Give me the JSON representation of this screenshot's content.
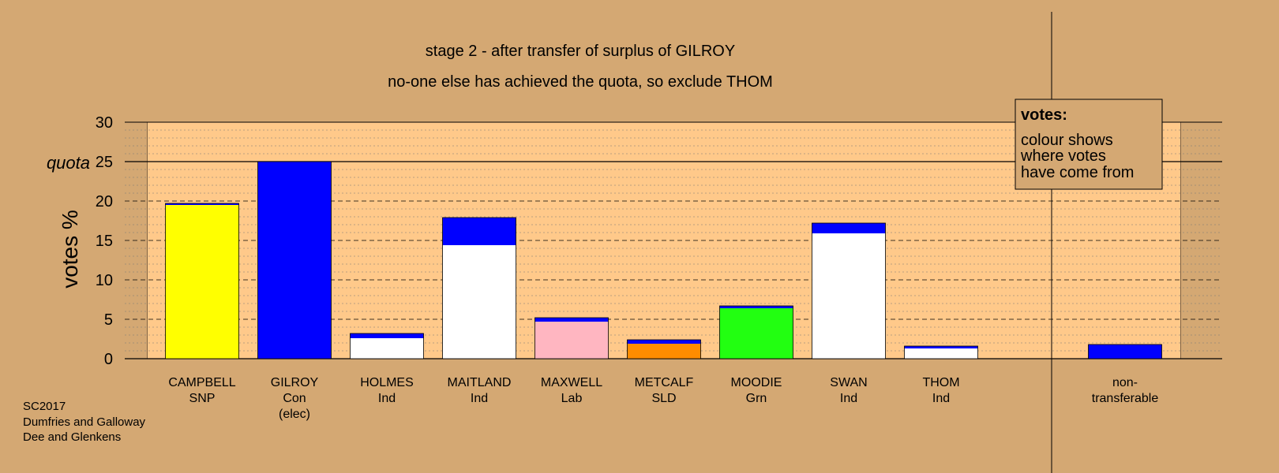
{
  "chart_data": {
    "type": "bar",
    "stacked": true,
    "title": "stage 2 - after transfer of surplus of GILROY",
    "subtitle": "no-one else has achieved the quota, so exclude THOM",
    "ylabel": "votes %",
    "xlabel": "",
    "ylim": [
      0,
      30
    ],
    "yticks": [
      "0",
      "5",
      "10",
      "15",
      "20",
      "25",
      "30"
    ],
    "quota": 25,
    "quota_label": "quota",
    "grid": true,
    "categories": [
      [
        "CAMPBELL",
        "SNP"
      ],
      [
        "GILROY",
        "Con",
        "(elec)"
      ],
      [
        "HOLMES",
        "Ind"
      ],
      [
        "MAITLAND",
        "Ind"
      ],
      [
        "MAXWELL",
        "Lab"
      ],
      [
        "METCALF",
        "SLD"
      ],
      [
        "MOODIE",
        "Grn"
      ],
      [
        "SWAN",
        "Ind"
      ],
      [
        "THOM",
        "Ind"
      ],
      [
        "non-",
        "transferable"
      ]
    ],
    "bars": [
      {
        "segments": [
          {
            "value": 19.5,
            "color": "#ffff00"
          },
          {
            "value": 0.2,
            "color": "#0000ff"
          }
        ]
      },
      {
        "segments": [
          {
            "value": 25.0,
            "color": "#0000ff"
          }
        ]
      },
      {
        "segments": [
          {
            "value": 2.6,
            "color": "#ffffff"
          },
          {
            "value": 0.6,
            "color": "#0000ff"
          }
        ]
      },
      {
        "segments": [
          {
            "value": 14.4,
            "color": "#ffffff"
          },
          {
            "value": 3.5,
            "color": "#0000ff"
          }
        ]
      },
      {
        "segments": [
          {
            "value": 4.7,
            "color": "#ffb6c1"
          },
          {
            "value": 0.5,
            "color": "#0000ff"
          }
        ]
      },
      {
        "segments": [
          {
            "value": 1.9,
            "color": "#ff8c00"
          },
          {
            "value": 0.5,
            "color": "#0000ff"
          }
        ]
      },
      {
        "segments": [
          {
            "value": 6.4,
            "color": "#22ff11"
          },
          {
            "value": 0.3,
            "color": "#0000ff"
          }
        ]
      },
      {
        "segments": [
          {
            "value": 15.9,
            "color": "#ffffff"
          },
          {
            "value": 1.3,
            "color": "#0000ff"
          }
        ]
      },
      {
        "segments": [
          {
            "value": 1.3,
            "color": "#ffffff"
          },
          {
            "value": 0.3,
            "color": "#0000ff"
          }
        ]
      },
      {
        "segments": [
          {
            "value": 1.8,
            "color": "#0000ff"
          }
        ]
      }
    ],
    "legend": {
      "title": "votes:",
      "lines": [
        "colour shows",
        "where votes",
        "have come from"
      ],
      "placement": "top-right"
    },
    "source_lines": [
      "SC2017",
      "Dumfries and Galloway",
      "Dee and Glenkens"
    ]
  },
  "colors": {
    "background": "#d4a873",
    "plot_background": "#ffc98a",
    "plot_right_shade": "#d4a873"
  }
}
